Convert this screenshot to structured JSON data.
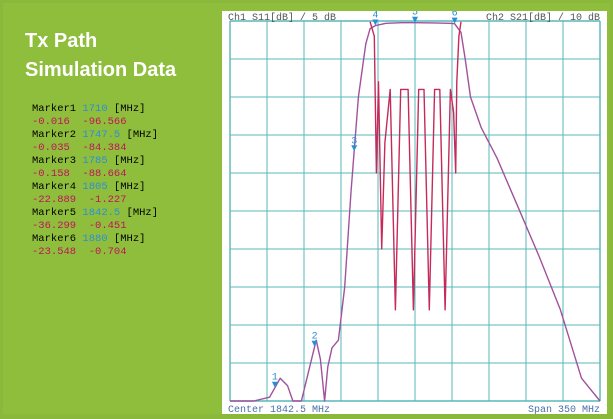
{
  "panel": {
    "title_line1": "Tx Path",
    "title_line2": "Simulation Data"
  },
  "markers": [
    {
      "name": "Marker1",
      "freq": "1710",
      "unit": "[MHz]",
      "s11": "-0.016",
      "s21": "-96.566"
    },
    {
      "name": "Marker2",
      "freq": "1747.5",
      "unit": "[MHz]",
      "s11": "-0.035",
      "s21": "-84.384"
    },
    {
      "name": "Marker3",
      "freq": "1785",
      "unit": "[MHz]",
      "s11": "-0.158",
      "s21": "-88.664"
    },
    {
      "name": "Marker4",
      "freq": "1805",
      "unit": "[MHz]",
      "s11": "-22.889",
      "s21": "-1.227"
    },
    {
      "name": "Marker5",
      "freq": "1842.5",
      "unit": "[MHz]",
      "s11": "-36.299",
      "s21": "-0.451"
    },
    {
      "name": "Marker6",
      "freq": "1880",
      "unit": "[MHz]",
      "s11": "-23.548",
      "s21": "-0.704"
    }
  ],
  "chart_data": {
    "type": "line",
    "header_left": "Ch1 S11[dB] / 5 dB",
    "header_right": "Ch2 S21[dB] / 10 dB",
    "footer_left": "Center 1842.5 MHz",
    "footer_right": "Span 350 MHz",
    "xlim": [
      1667.5,
      2017.5
    ],
    "x_divisions": 10,
    "y_divisions": 10,
    "grid": true,
    "colors": {
      "s11": "#c42a5a",
      "s21": "#a0529c",
      "grid": "#59b7b7",
      "marker": "#2a8fd6"
    },
    "s11": {
      "scale_db_per_div": 5,
      "ref_db": 0,
      "points": [
        [
          1800,
          -0.1
        ],
        [
          1804,
          -2
        ],
        [
          1806,
          -20
        ],
        [
          1808,
          -8
        ],
        [
          1811,
          -30
        ],
        [
          1814,
          -16
        ],
        [
          1819,
          -9
        ],
        [
          1824,
          -38
        ],
        [
          1829,
          -9
        ],
        [
          1836,
          -9
        ],
        [
          1841,
          -38
        ],
        [
          1846,
          -9
        ],
        [
          1851,
          -9
        ],
        [
          1856,
          -38
        ],
        [
          1861,
          -9
        ],
        [
          1866,
          -9
        ],
        [
          1871,
          -38
        ],
        [
          1876,
          -9
        ],
        [
          1879,
          -12
        ],
        [
          1881,
          -20
        ],
        [
          1882,
          -8
        ],
        [
          1884,
          -2
        ],
        [
          1886,
          -0.1
        ]
      ]
    },
    "s21": {
      "scale_db_per_div": 10,
      "ref_db": 0,
      "points": [
        [
          1667.5,
          -120
        ],
        [
          1690,
          -108
        ],
        [
          1705,
          -99
        ],
        [
          1715,
          -94
        ],
        [
          1722,
          -96
        ],
        [
          1727,
          -108
        ],
        [
          1730,
          -125
        ],
        [
          1735,
          -105
        ],
        [
          1742,
          -92
        ],
        [
          1749,
          -84
        ],
        [
          1753,
          -89
        ],
        [
          1757,
          -108
        ],
        [
          1760,
          -91
        ],
        [
          1764,
          -86
        ],
        [
          1770,
          -84
        ],
        [
          1776,
          -70
        ],
        [
          1782,
          -45
        ],
        [
          1789,
          -20
        ],
        [
          1796,
          -6
        ],
        [
          1800,
          -2
        ],
        [
          1805,
          -1.2
        ],
        [
          1815,
          -0.6
        ],
        [
          1830,
          -0.45
        ],
        [
          1842.5,
          -0.45
        ],
        [
          1860,
          -0.5
        ],
        [
          1875,
          -0.6
        ],
        [
          1880,
          -0.7
        ],
        [
          1886,
          -3
        ],
        [
          1890,
          -10
        ],
        [
          1895,
          -20
        ],
        [
          1905,
          -28
        ],
        [
          1920,
          -36
        ],
        [
          1940,
          -49
        ],
        [
          1960,
          -62
        ],
        [
          1980,
          -76
        ],
        [
          2000,
          -94
        ],
        [
          2017.5,
          -104
        ]
      ]
    },
    "markers": [
      {
        "label": "1",
        "x": 1710
      },
      {
        "label": "2",
        "x": 1747.5
      },
      {
        "label": "3",
        "x": 1785
      },
      {
        "label": "4",
        "x": 1805
      },
      {
        "label": "5",
        "x": 1842.5
      },
      {
        "label": "6",
        "x": 1880
      }
    ]
  }
}
